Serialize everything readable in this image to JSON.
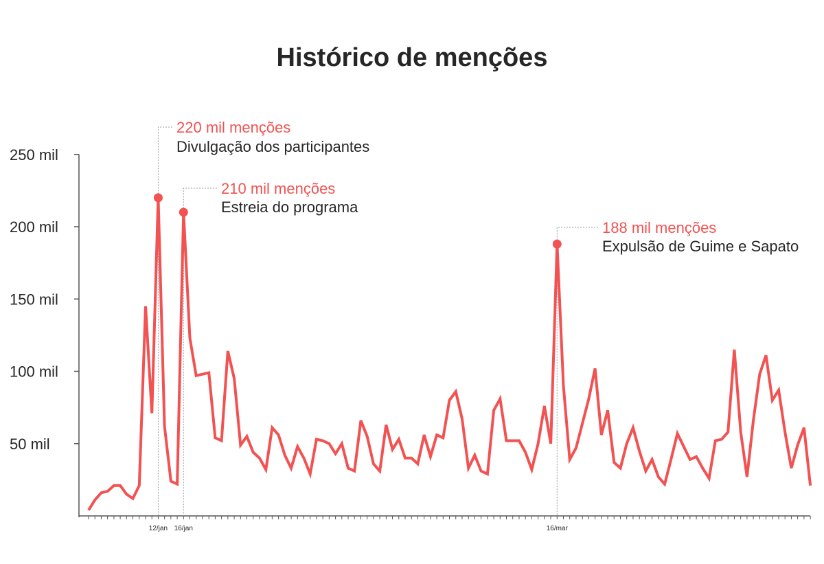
{
  "colors": {
    "line": "#f25252",
    "axis": "#555555",
    "text": "#262626",
    "leader": "#999999"
  },
  "chart_data": {
    "type": "line",
    "title": "Histórico de menções",
    "xlabel": "",
    "ylabel": "",
    "ylim": [
      0,
      250
    ],
    "grid": false,
    "y_tick_values": [
      50,
      100,
      150,
      200,
      250
    ],
    "y_tick_labels": [
      "50 mil",
      "100 mil",
      "150 mil",
      "200 mil",
      "250 mil"
    ],
    "x_tick_labels": [
      {
        "index": 11,
        "label": "12/jan"
      },
      {
        "index": 15,
        "label": "16/jan"
      },
      {
        "index": 74,
        "label": "16/mar"
      }
    ],
    "series": [
      {
        "values": [
          4,
          11,
          16,
          17,
          21,
          21,
          15,
          12,
          21,
          145,
          71,
          220,
          62,
          24,
          22,
          210,
          123,
          97,
          98,
          99,
          54,
          52,
          114,
          95,
          49,
          55,
          44,
          40,
          32,
          61,
          56,
          42,
          33,
          48,
          40,
          29,
          53,
          52,
          50,
          43,
          50,
          33,
          31,
          66,
          55,
          36,
          31,
          63,
          46,
          53,
          40,
          40,
          36,
          56,
          41,
          56,
          54,
          80,
          86,
          67,
          33,
          42,
          31,
          29,
          73,
          81,
          52,
          52,
          52,
          44,
          32,
          50,
          76,
          50,
          188,
          90,
          39,
          47,
          64,
          81,
          102,
          56,
          73,
          37,
          33,
          50,
          61,
          45,
          31,
          39,
          27,
          22,
          39,
          57,
          48,
          39,
          41,
          33,
          26,
          52,
          53,
          58,
          115,
          58,
          27,
          66,
          98,
          111,
          80,
          87,
          58,
          33,
          49,
          61,
          21
        ]
      }
    ],
    "annotations": [
      {
        "index": 11,
        "value_label": "220 mil menções",
        "description": "Divulgação dos participantes"
      },
      {
        "index": 15,
        "value_label": "210 mil menções",
        "description": "Estreia do programa"
      },
      {
        "index": 74,
        "value_label": "188 mil menções",
        "description": "Expulsão de Guime e Sapato"
      }
    ]
  }
}
